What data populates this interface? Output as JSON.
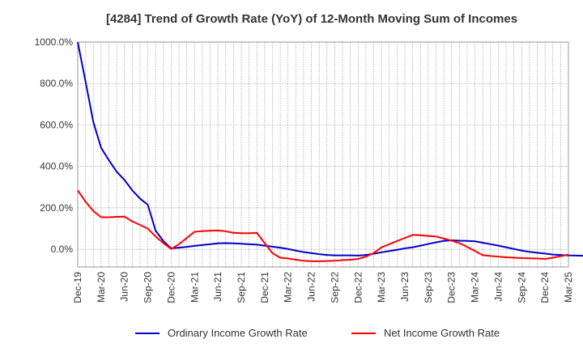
{
  "chart_data": {
    "type": "line",
    "title": "[4284]  Trend of Growth Rate (YoY) of 12-Month Moving Sum of Incomes",
    "xlabel": "",
    "ylabel": "",
    "ylim": [
      -85,
      1000
    ],
    "grid": true,
    "legend_position": "bottom",
    "y_ticks": [
      1000,
      800,
      600,
      400,
      200,
      0
    ],
    "y_tick_labels": [
      "1000.0%",
      "800.0%",
      "600.0%",
      "400.0%",
      "200.0%",
      "0.0%"
    ],
    "x_tick_labels": [
      "Dec-19",
      "Mar-20",
      "Jun-20",
      "Sep-20",
      "Dec-20",
      "Mar-21",
      "Jun-21",
      "Sep-21",
      "Dec-21",
      "Mar-22",
      "Jun-22",
      "Sep-22",
      "Dec-22",
      "Mar-23",
      "Jun-23",
      "Sep-23",
      "Dec-23",
      "Mar-24",
      "Jun-24",
      "Sep-24",
      "Dec-24",
      "Mar-25"
    ],
    "series": [
      {
        "name": "Ordinary Income Growth Rate",
        "color": "#0000cc",
        "start_month": 0,
        "values": [
          1000,
          810,
          615,
          490,
          430,
          375,
          335,
          285,
          245,
          215,
          90,
          40,
          5,
          8,
          12,
          17,
          21,
          25,
          29,
          30,
          29,
          27,
          25,
          23,
          18,
          13,
          8,
          2,
          -6,
          -13,
          -18,
          -23,
          -27,
          -29,
          -29,
          -29,
          -30,
          -27,
          -21,
          -14,
          -8,
          -2,
          5,
          10,
          18,
          26,
          34,
          41,
          44,
          42,
          41,
          39,
          32,
          25,
          18,
          10,
          2,
          -6,
          -12,
          -16,
          -20,
          -25,
          -27,
          -29,
          -30,
          -31,
          -30,
          -27,
          -22,
          -18
        ]
      },
      {
        "name": "Net Income Growth Rate",
        "color": "#ff0000",
        "start_month": 0,
        "values": [
          285,
          230,
          185,
          155,
          155,
          157,
          158,
          135,
          118,
          100,
          62,
          30,
          2,
          25,
          55,
          85,
          88,
          90,
          91,
          87,
          80,
          78,
          78,
          80,
          30,
          -18,
          -40,
          -44,
          -50,
          -55,
          -57,
          -57,
          -56,
          -55,
          -52,
          -50,
          -46,
          -35,
          -18,
          10,
          25,
          40,
          55,
          70,
          68,
          65,
          62,
          52,
          42,
          30,
          12,
          -8,
          -28,
          -32,
          -35,
          -38,
          -40,
          -42,
          -43,
          -44,
          -46,
          -40,
          -33,
          -25
        ]
      }
    ]
  }
}
